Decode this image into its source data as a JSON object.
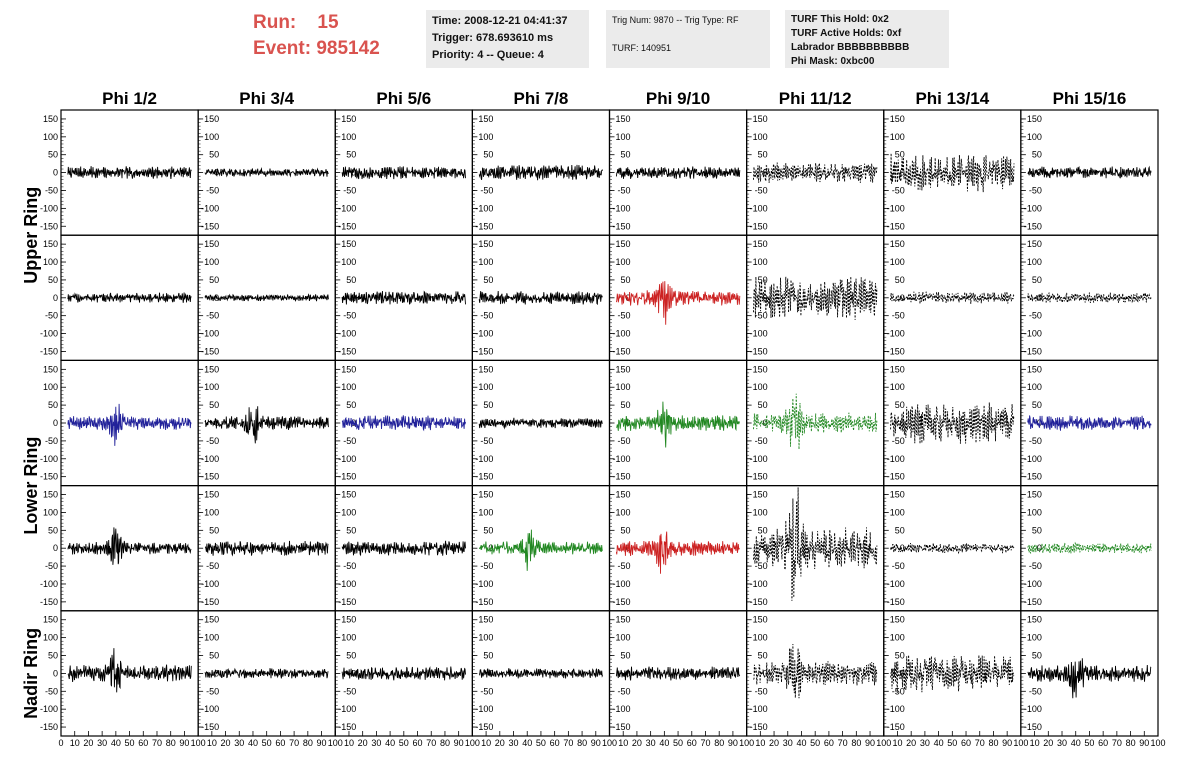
{
  "header": {
    "run_label": "Run:",
    "run_value": "15",
    "event_label": "Event:",
    "event_value": "985142",
    "time": "Time: 2008-12-21 04:41:37",
    "trigger": "Trigger: 678.693610 ms",
    "priority": "Priority: 4 -- Queue: 4",
    "trig_num": "Trig Num: 9870 -- Trig Type: RF",
    "turf": "TURF: 140951",
    "turf_hold": "TURF This Hold: 0x2",
    "turf_active": "TURF Active Holds: 0xf",
    "labrador": "Labrador BBBBBBBBBB",
    "phi_mask": "Phi Mask: 0xbc00"
  },
  "colors": {
    "black": "#000000",
    "red": "#cc2222",
    "blue": "#22229a",
    "green": "#228822",
    "accent_text": "#d9534f"
  },
  "chart_data": {
    "type": "line",
    "columns": [
      "Phi 1/2",
      "Phi 3/4",
      "Phi 5/6",
      "Phi 7/8",
      "Phi 9/10",
      "Phi 11/12",
      "Phi 13/14",
      "Phi 15/16"
    ],
    "ring_labels": [
      "Upper Ring",
      "Lower Ring",
      "Nadir Ring"
    ],
    "ylim": [
      -175,
      175
    ],
    "yticks": [
      150,
      100,
      50,
      0,
      -50,
      -100,
      -150
    ],
    "xlim": [
      0,
      100
    ],
    "xticks": [
      0,
      10,
      20,
      30,
      40,
      50,
      60,
      70,
      80,
      90,
      100
    ],
    "xtick_labels": [
      "0",
      "10",
      "20",
      "30",
      "40",
      "50",
      "60",
      "70",
      "80",
      "90",
      "100"
    ],
    "panels": [
      [
        {
          "color": "black",
          "dashed": false,
          "amp": 18,
          "burst_x": null
        },
        {
          "color": "black",
          "dashed": false,
          "amp": 12,
          "burst_x": null
        },
        {
          "color": "black",
          "dashed": false,
          "amp": 20,
          "burst_x": null
        },
        {
          "color": "black",
          "dashed": false,
          "amp": 22,
          "burst_x": null
        },
        {
          "color": "black",
          "dashed": false,
          "amp": 18,
          "burst_x": null
        },
        {
          "color": "black",
          "dashed": true,
          "amp": 30,
          "burst_x": null
        },
        {
          "color": "black",
          "dashed": true,
          "amp": 55,
          "burst_x": null
        },
        {
          "color": "black",
          "dashed": false,
          "amp": 18,
          "burst_x": null
        }
      ],
      [
        {
          "color": "black",
          "dashed": false,
          "amp": 15,
          "burst_x": null
        },
        {
          "color": "black",
          "dashed": false,
          "amp": 10,
          "burst_x": null
        },
        {
          "color": "black",
          "dashed": false,
          "amp": 20,
          "burst_x": null
        },
        {
          "color": "black",
          "dashed": false,
          "amp": 20,
          "burst_x": null
        },
        {
          "color": "red",
          "dashed": false,
          "amp": 22,
          "burst_x": 40
        },
        {
          "color": "black",
          "dashed": true,
          "amp": 65,
          "burst_x": null
        },
        {
          "color": "black",
          "dashed": true,
          "amp": 18,
          "burst_x": null
        },
        {
          "color": "black",
          "dashed": true,
          "amp": 15,
          "burst_x": null
        }
      ],
      [
        {
          "color": "blue",
          "dashed": false,
          "amp": 20,
          "burst_x": 40
        },
        {
          "color": "black",
          "dashed": false,
          "amp": 20,
          "burst_x": 40
        },
        {
          "color": "blue",
          "dashed": false,
          "amp": 22,
          "burst_x": null
        },
        {
          "color": "black",
          "dashed": false,
          "amp": 15,
          "burst_x": null
        },
        {
          "color": "green",
          "dashed": false,
          "amp": 22,
          "burst_x": 40
        },
        {
          "color": "green",
          "dashed": true,
          "amp": 30,
          "burst_x": 35
        },
        {
          "color": "black",
          "dashed": true,
          "amp": 60,
          "burst_x": null
        },
        {
          "color": "blue",
          "dashed": false,
          "amp": 22,
          "burst_x": null
        }
      ],
      [
        {
          "color": "black",
          "dashed": false,
          "amp": 18,
          "burst_x": 40
        },
        {
          "color": "black",
          "dashed": false,
          "amp": 22,
          "burst_x": null
        },
        {
          "color": "black",
          "dashed": false,
          "amp": 22,
          "burst_x": null
        },
        {
          "color": "green",
          "dashed": false,
          "amp": 20,
          "burst_x": 40
        },
        {
          "color": "red",
          "dashed": false,
          "amp": 22,
          "burst_x": 38
        },
        {
          "color": "black",
          "dashed": true,
          "amp": 60,
          "burst_x": 35
        },
        {
          "color": "black",
          "dashed": true,
          "amp": 15,
          "burst_x": null
        },
        {
          "color": "green",
          "dashed": true,
          "amp": 15,
          "burst_x": null
        }
      ],
      [
        {
          "color": "black",
          "dashed": false,
          "amp": 25,
          "burst_x": 40
        },
        {
          "color": "black",
          "dashed": false,
          "amp": 15,
          "burst_x": null
        },
        {
          "color": "black",
          "dashed": false,
          "amp": 20,
          "burst_x": null
        },
        {
          "color": "black",
          "dashed": false,
          "amp": 15,
          "burst_x": null
        },
        {
          "color": "black",
          "dashed": false,
          "amp": 20,
          "burst_x": null
        },
        {
          "color": "black",
          "dashed": true,
          "amp": 35,
          "burst_x": 35
        },
        {
          "color": "black",
          "dashed": true,
          "amp": 55,
          "burst_x": null
        },
        {
          "color": "black",
          "dashed": false,
          "amp": 25,
          "burst_x": 40
        }
      ]
    ]
  }
}
